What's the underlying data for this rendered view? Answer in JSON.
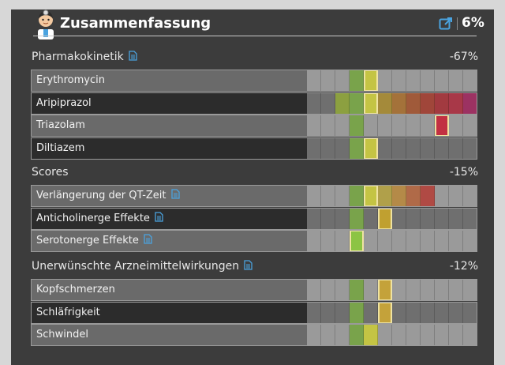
{
  "header": {
    "title": "Zusammenfassung",
    "percent": "6%"
  },
  "colors": {
    "panel": "#3c3c3c",
    "row_light": "#6a6a6a",
    "row_dark": "#2c2c2c",
    "accent_blue": "#4aa3e0"
  },
  "sections": [
    {
      "title": "Pharmakokinetik",
      "percent": "-67%",
      "rows": [
        {
          "label": "Erythromycin",
          "has_doc": false,
          "cells": [
            "#9a9a9a",
            "#9a9a9a",
            "#9a9a9a",
            "#79a34b",
            "#c4c444",
            "#9a9a9a",
            "#9a9a9a",
            "#9a9a9a",
            "#9a9a9a",
            "#9a9a9a",
            "#9a9a9a",
            "#9a9a9a"
          ],
          "highlight": 4
        },
        {
          "label": "Aripiprazol",
          "has_doc": false,
          "cells": [
            "#6f6f6f",
            "#6f6f6f",
            "#8ca040",
            "#79a34b",
            "#c4c444",
            "#a48a3a",
            "#a4723a",
            "#a05a3a",
            "#a0463a",
            "#a23a40",
            "#a83848",
            "#9c3262"
          ],
          "highlight": 4
        },
        {
          "label": "Triazolam",
          "has_doc": false,
          "cells": [
            "#9a9a9a",
            "#9a9a9a",
            "#9a9a9a",
            "#79a34b",
            "#9a9a9a",
            "#9a9a9a",
            "#9a9a9a",
            "#9a9a9a",
            "#9a9a9a",
            "#c23042",
            "#9a9a9a",
            "#9a9a9a"
          ],
          "highlight": 9
        },
        {
          "label": "Diltiazem",
          "has_doc": false,
          "cells": [
            "#6f6f6f",
            "#6f6f6f",
            "#6f6f6f",
            "#79a34b",
            "#c4c444",
            "#6f6f6f",
            "#6f6f6f",
            "#6f6f6f",
            "#6f6f6f",
            "#6f6f6f",
            "#6f6f6f",
            "#6f6f6f"
          ],
          "highlight": 4
        }
      ]
    },
    {
      "title": "Scores",
      "percent": "-15%",
      "rows": [
        {
          "label": "Verlängerung der QT-Zeit",
          "has_doc": true,
          "cells": [
            "#9a9a9a",
            "#9a9a9a",
            "#9a9a9a",
            "#79a34b",
            "#c4c444",
            "#b0a04a",
            "#b48a48",
            "#b06a48",
            "#b04a44",
            "#9a9a9a",
            "#9a9a9a",
            "#9a9a9a"
          ],
          "highlight": 4
        },
        {
          "label": "Anticholinerge Effekte",
          "has_doc": true,
          "cells": [
            "#6f6f6f",
            "#6f6f6f",
            "#6f6f6f",
            "#79a34b",
            "#6f6f6f",
            "#c0a030",
            "#6f6f6f",
            "#6f6f6f",
            "#6f6f6f",
            "#6f6f6f",
            "#6f6f6f",
            "#6f6f6f"
          ],
          "highlight": 5
        },
        {
          "label": "Serotonerge Effekte",
          "has_doc": true,
          "cells": [
            "#9a9a9a",
            "#9a9a9a",
            "#9a9a9a",
            "#8cc444",
            "#9a9a9a",
            "#9a9a9a",
            "#9a9a9a",
            "#9a9a9a",
            "#9a9a9a",
            "#9a9a9a",
            "#9a9a9a",
            "#9a9a9a"
          ],
          "highlight": 3
        }
      ]
    },
    {
      "title": "Unerwünschte Arzneimittelwirkungen",
      "percent": "-12%",
      "rows": [
        {
          "label": "Kopfschmerzen",
          "has_doc": false,
          "cells": [
            "#9a9a9a",
            "#9a9a9a",
            "#9a9a9a",
            "#79a34b",
            "#9a9a9a",
            "#c4a23a",
            "#9a9a9a",
            "#9a9a9a",
            "#9a9a9a",
            "#9a9a9a",
            "#9a9a9a",
            "#9a9a9a"
          ],
          "highlight": 5
        },
        {
          "label": "Schläfrigkeit",
          "has_doc": false,
          "cells": [
            "#6f6f6f",
            "#6f6f6f",
            "#6f6f6f",
            "#79a34b",
            "#6f6f6f",
            "#c4a23a",
            "#6f6f6f",
            "#6f6f6f",
            "#6f6f6f",
            "#6f6f6f",
            "#6f6f6f",
            "#6f6f6f"
          ],
          "highlight": 5
        },
        {
          "label": "Schwindel",
          "has_doc": false,
          "cells": [
            "#9a9a9a",
            "#9a9a9a",
            "#9a9a9a",
            "#79a34b",
            "#c4c444",
            "#9a9a9a",
            "#9a9a9a",
            "#9a9a9a",
            "#9a9a9a",
            "#9a9a9a",
            "#9a9a9a",
            "#9a9a9a"
          ],
          "highlight": -1
        }
      ]
    }
  ]
}
